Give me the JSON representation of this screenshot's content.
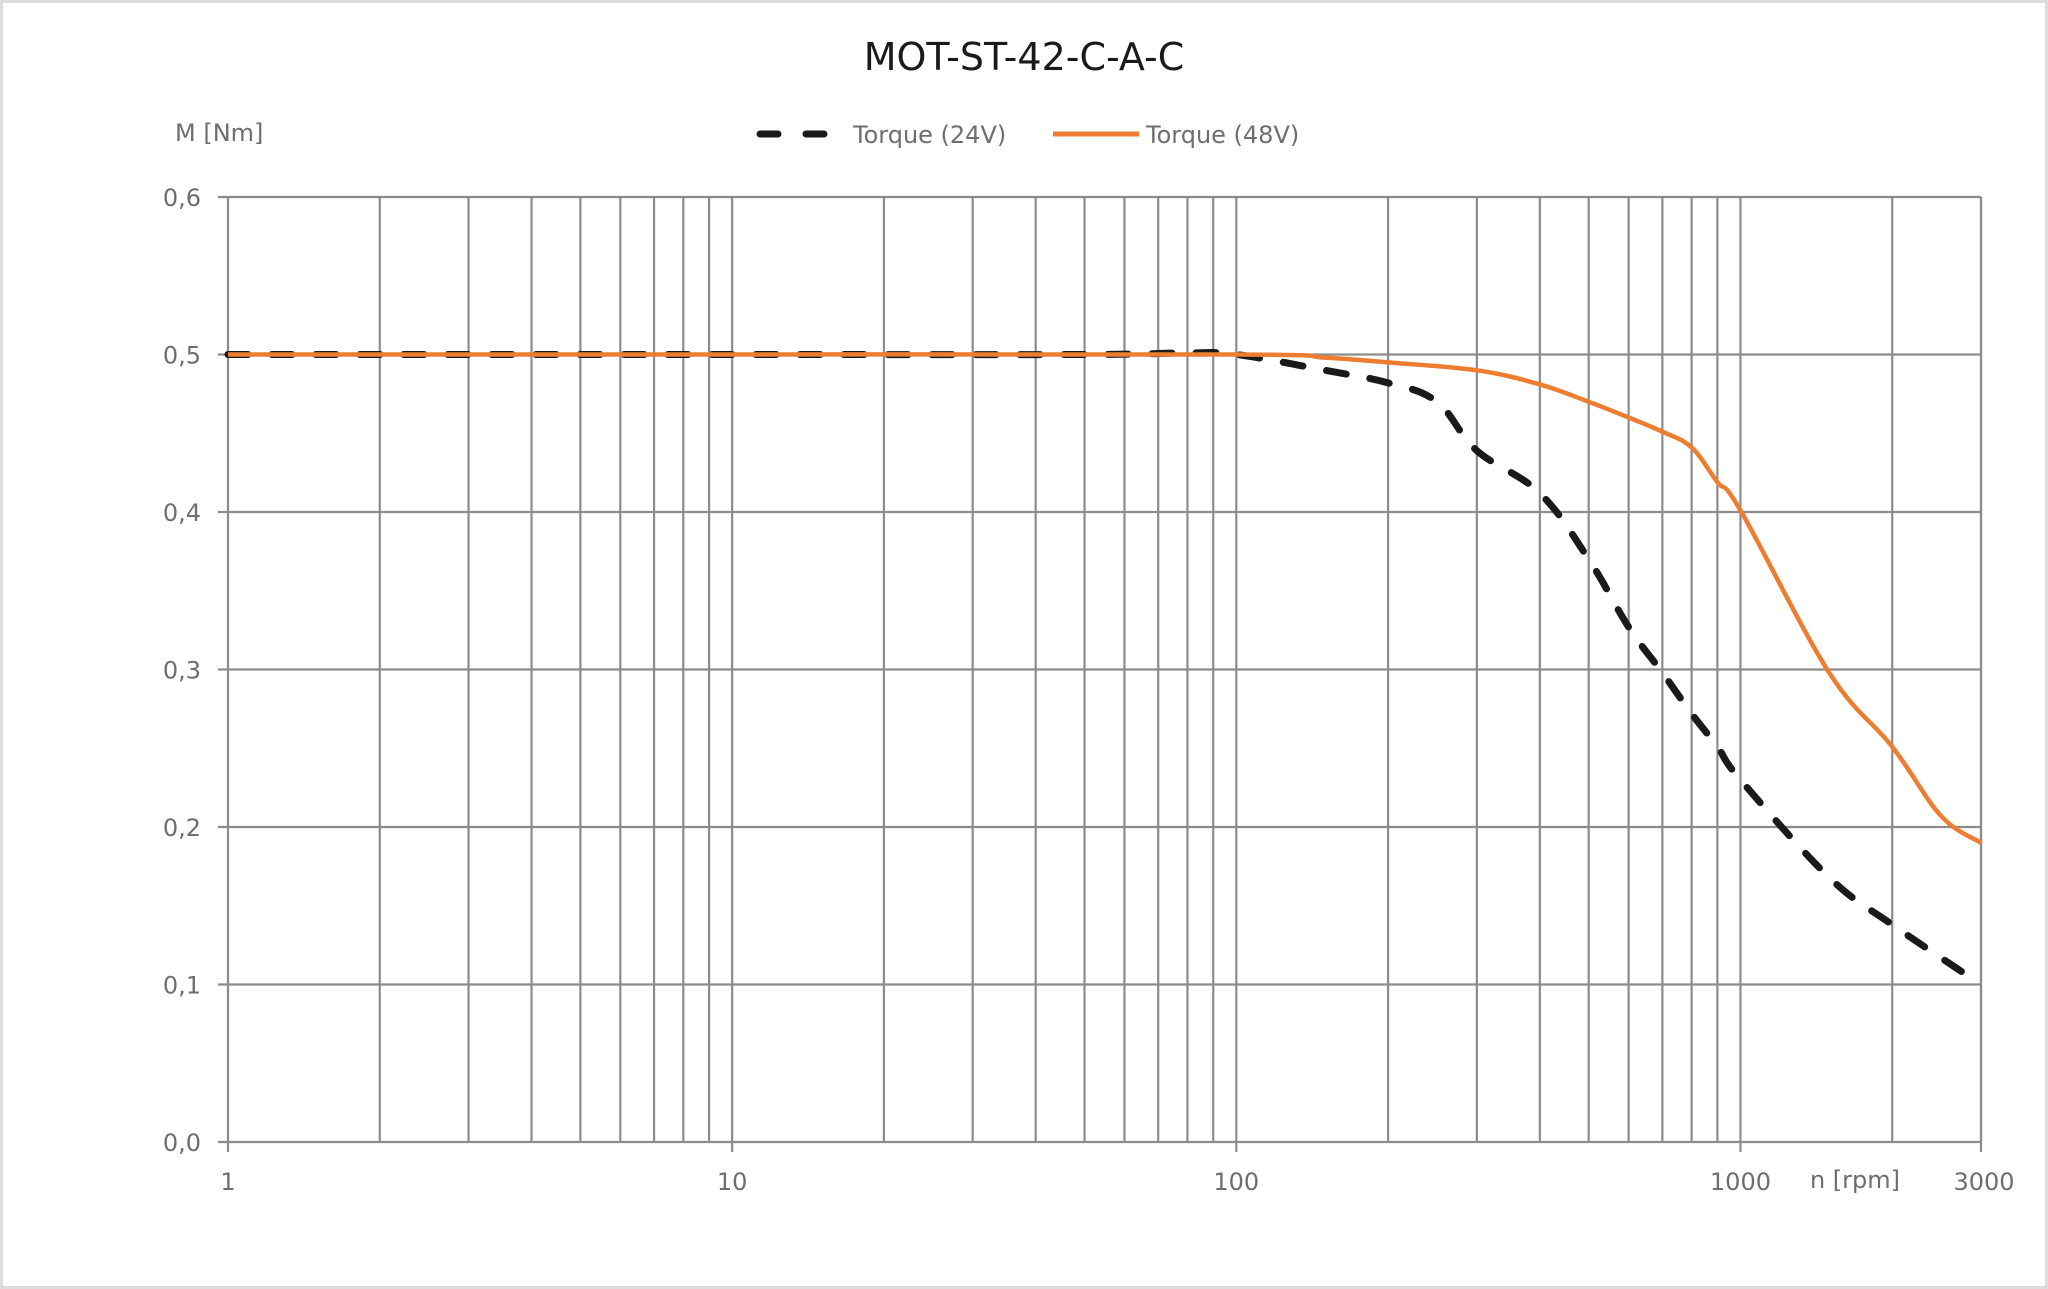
{
  "chart_data": {
    "type": "line",
    "title": "MOT-ST-42-C-A-C",
    "xlabel": "n [rpm]",
    "ylabel": "M [Nm]",
    "x_scale": "log",
    "xlim": [
      1,
      3000
    ],
    "ylim": [
      0,
      0.6
    ],
    "grid": true,
    "legend_position": "top",
    "x_tick_labels": [
      {
        "value": 1,
        "label": "1"
      },
      {
        "value": 10,
        "label": "10"
      },
      {
        "value": 100,
        "label": "100"
      },
      {
        "value": 1000,
        "label": "1000"
      },
      {
        "value": 3000,
        "label": "3000"
      }
    ],
    "y_tick_labels": [
      {
        "value": 0.0,
        "label": "0,0"
      },
      {
        "value": 0.1,
        "label": "0,1"
      },
      {
        "value": 0.2,
        "label": "0,2"
      },
      {
        "value": 0.3,
        "label": "0,3"
      },
      {
        "value": 0.4,
        "label": "0,4"
      },
      {
        "value": 0.5,
        "label": "0,5"
      },
      {
        "value": 0.6,
        "label": "0,6"
      }
    ],
    "series": [
      {
        "name": "Torque (24V)",
        "color": "#1a1a1a",
        "style": "dashed",
        "x": [
          1,
          10,
          50,
          80,
          100,
          150,
          200,
          250,
          300,
          400,
          500,
          600,
          700,
          800,
          900,
          1000,
          1500,
          2000,
          3000
        ],
        "y": [
          0.5,
          0.5,
          0.5,
          0.501,
          0.5,
          0.49,
          0.482,
          0.47,
          0.439,
          0.412,
          0.37,
          0.327,
          0.298,
          0.272,
          0.251,
          0.23,
          0.168,
          0.138,
          0.1
        ]
      },
      {
        "name": "Torque (48V)",
        "color": "#ed7d31",
        "style": "solid",
        "x": [
          1,
          10,
          100,
          150,
          200,
          300,
          400,
          500,
          600,
          700,
          800,
          900,
          1000,
          1500,
          2000,
          2500,
          3000
        ],
        "y": [
          0.5,
          0.5,
          0.5,
          0.498,
          0.495,
          0.49,
          0.481,
          0.47,
          0.46,
          0.451,
          0.441,
          0.419,
          0.401,
          0.298,
          0.251,
          0.207,
          0.19
        ]
      }
    ]
  },
  "colors": {
    "gridline": "#8c8c8c",
    "frame_border": "#dcdcdc"
  }
}
